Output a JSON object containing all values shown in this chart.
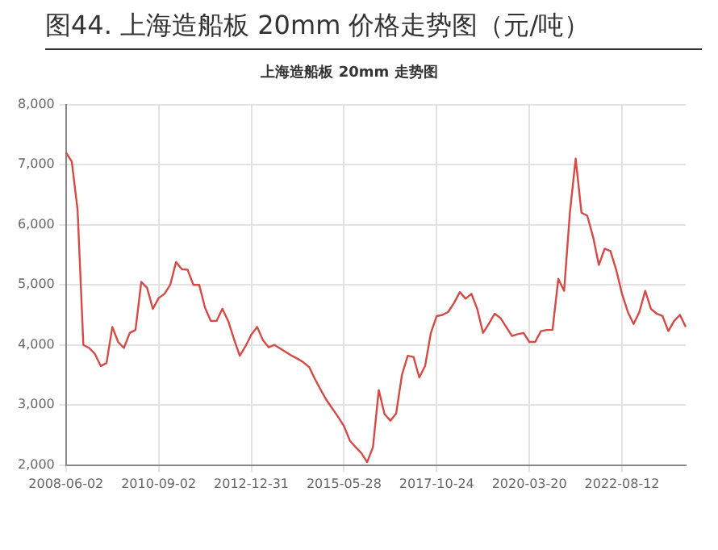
{
  "chart_data": {
    "type": "line",
    "title": "图44. 上海造船板 20mm 价格走势图（元/吨）",
    "subtitle": "上海造船板 20mm 走势图",
    "categories": [
      "2008-06-02",
      null,
      null,
      null,
      null,
      null,
      null,
      null,
      null,
      null,
      null,
      null,
      null,
      null,
      null,
      null,
      "2010-09-02",
      null,
      null,
      null,
      null,
      null,
      null,
      null,
      null,
      null,
      null,
      null,
      null,
      null,
      null,
      null,
      "2012-12-31",
      null,
      null,
      null,
      null,
      null,
      null,
      null,
      null,
      null,
      null,
      null,
      null,
      null,
      null,
      null,
      "2015-05-28",
      null,
      null,
      null,
      null,
      null,
      null,
      null,
      null,
      null,
      null,
      null,
      null,
      null,
      null,
      null,
      "2017-10-24",
      null,
      null,
      null,
      null,
      null,
      null,
      null,
      null,
      null,
      null,
      null,
      null,
      null,
      null,
      null,
      "2020-03-20",
      null,
      null,
      null,
      null,
      null,
      null,
      null,
      null,
      null,
      null,
      null,
      null,
      null,
      null,
      null,
      "2022-08-12",
      null,
      null,
      null,
      null,
      null,
      null,
      null,
      null,
      null,
      null,
      null
    ],
    "series": [
      {
        "color": "#d44a45",
        "values": [
          7200,
          7050,
          6250,
          4000,
          3950,
          3850,
          3650,
          3700,
          4300,
          4050,
          3950,
          4200,
          4250,
          5050,
          4950,
          4600,
          4780,
          4850,
          5000,
          5380,
          5260,
          5250,
          5000,
          5000,
          4620,
          4400,
          4400,
          4600,
          4400,
          4100,
          3820,
          3980,
          4170,
          4300,
          4080,
          3960,
          4000,
          3940,
          3880,
          3820,
          3770,
          3710,
          3630,
          3430,
          3250,
          3080,
          2940,
          2800,
          2650,
          2410,
          2300,
          2200,
          2050,
          2300,
          3250,
          2850,
          2740,
          2860,
          3500,
          3820,
          3800,
          3460,
          3650,
          4200,
          4480,
          4500,
          4550,
          4700,
          4880,
          4770,
          4850,
          4600,
          4200,
          4350,
          4520,
          4450,
          4300,
          4150,
          4180,
          4200,
          4050,
          4050,
          4230,
          4250,
          4250,
          5100,
          4900,
          6200,
          7100,
          6200,
          6150,
          5800,
          5330,
          5600,
          5560,
          5250,
          4850,
          4550,
          4350,
          4550,
          4900,
          4600,
          4520,
          4480,
          4230,
          4400,
          4500,
          4300
        ]
      }
    ],
    "ylim": [
      2000,
      8000
    ],
    "yticks": [
      {
        "value": 2000,
        "label": "2,000"
      },
      {
        "value": 3000,
        "label": "3,000"
      },
      {
        "value": 4000,
        "label": "4,000"
      },
      {
        "value": 5000,
        "label": "5,000"
      },
      {
        "value": 6000,
        "label": "6,000"
      },
      {
        "value": 7000,
        "label": "7,000"
      },
      {
        "value": 8000,
        "label": "8,000"
      }
    ],
    "grid": true,
    "legend": false,
    "marker": "none",
    "line_style": "solid"
  }
}
